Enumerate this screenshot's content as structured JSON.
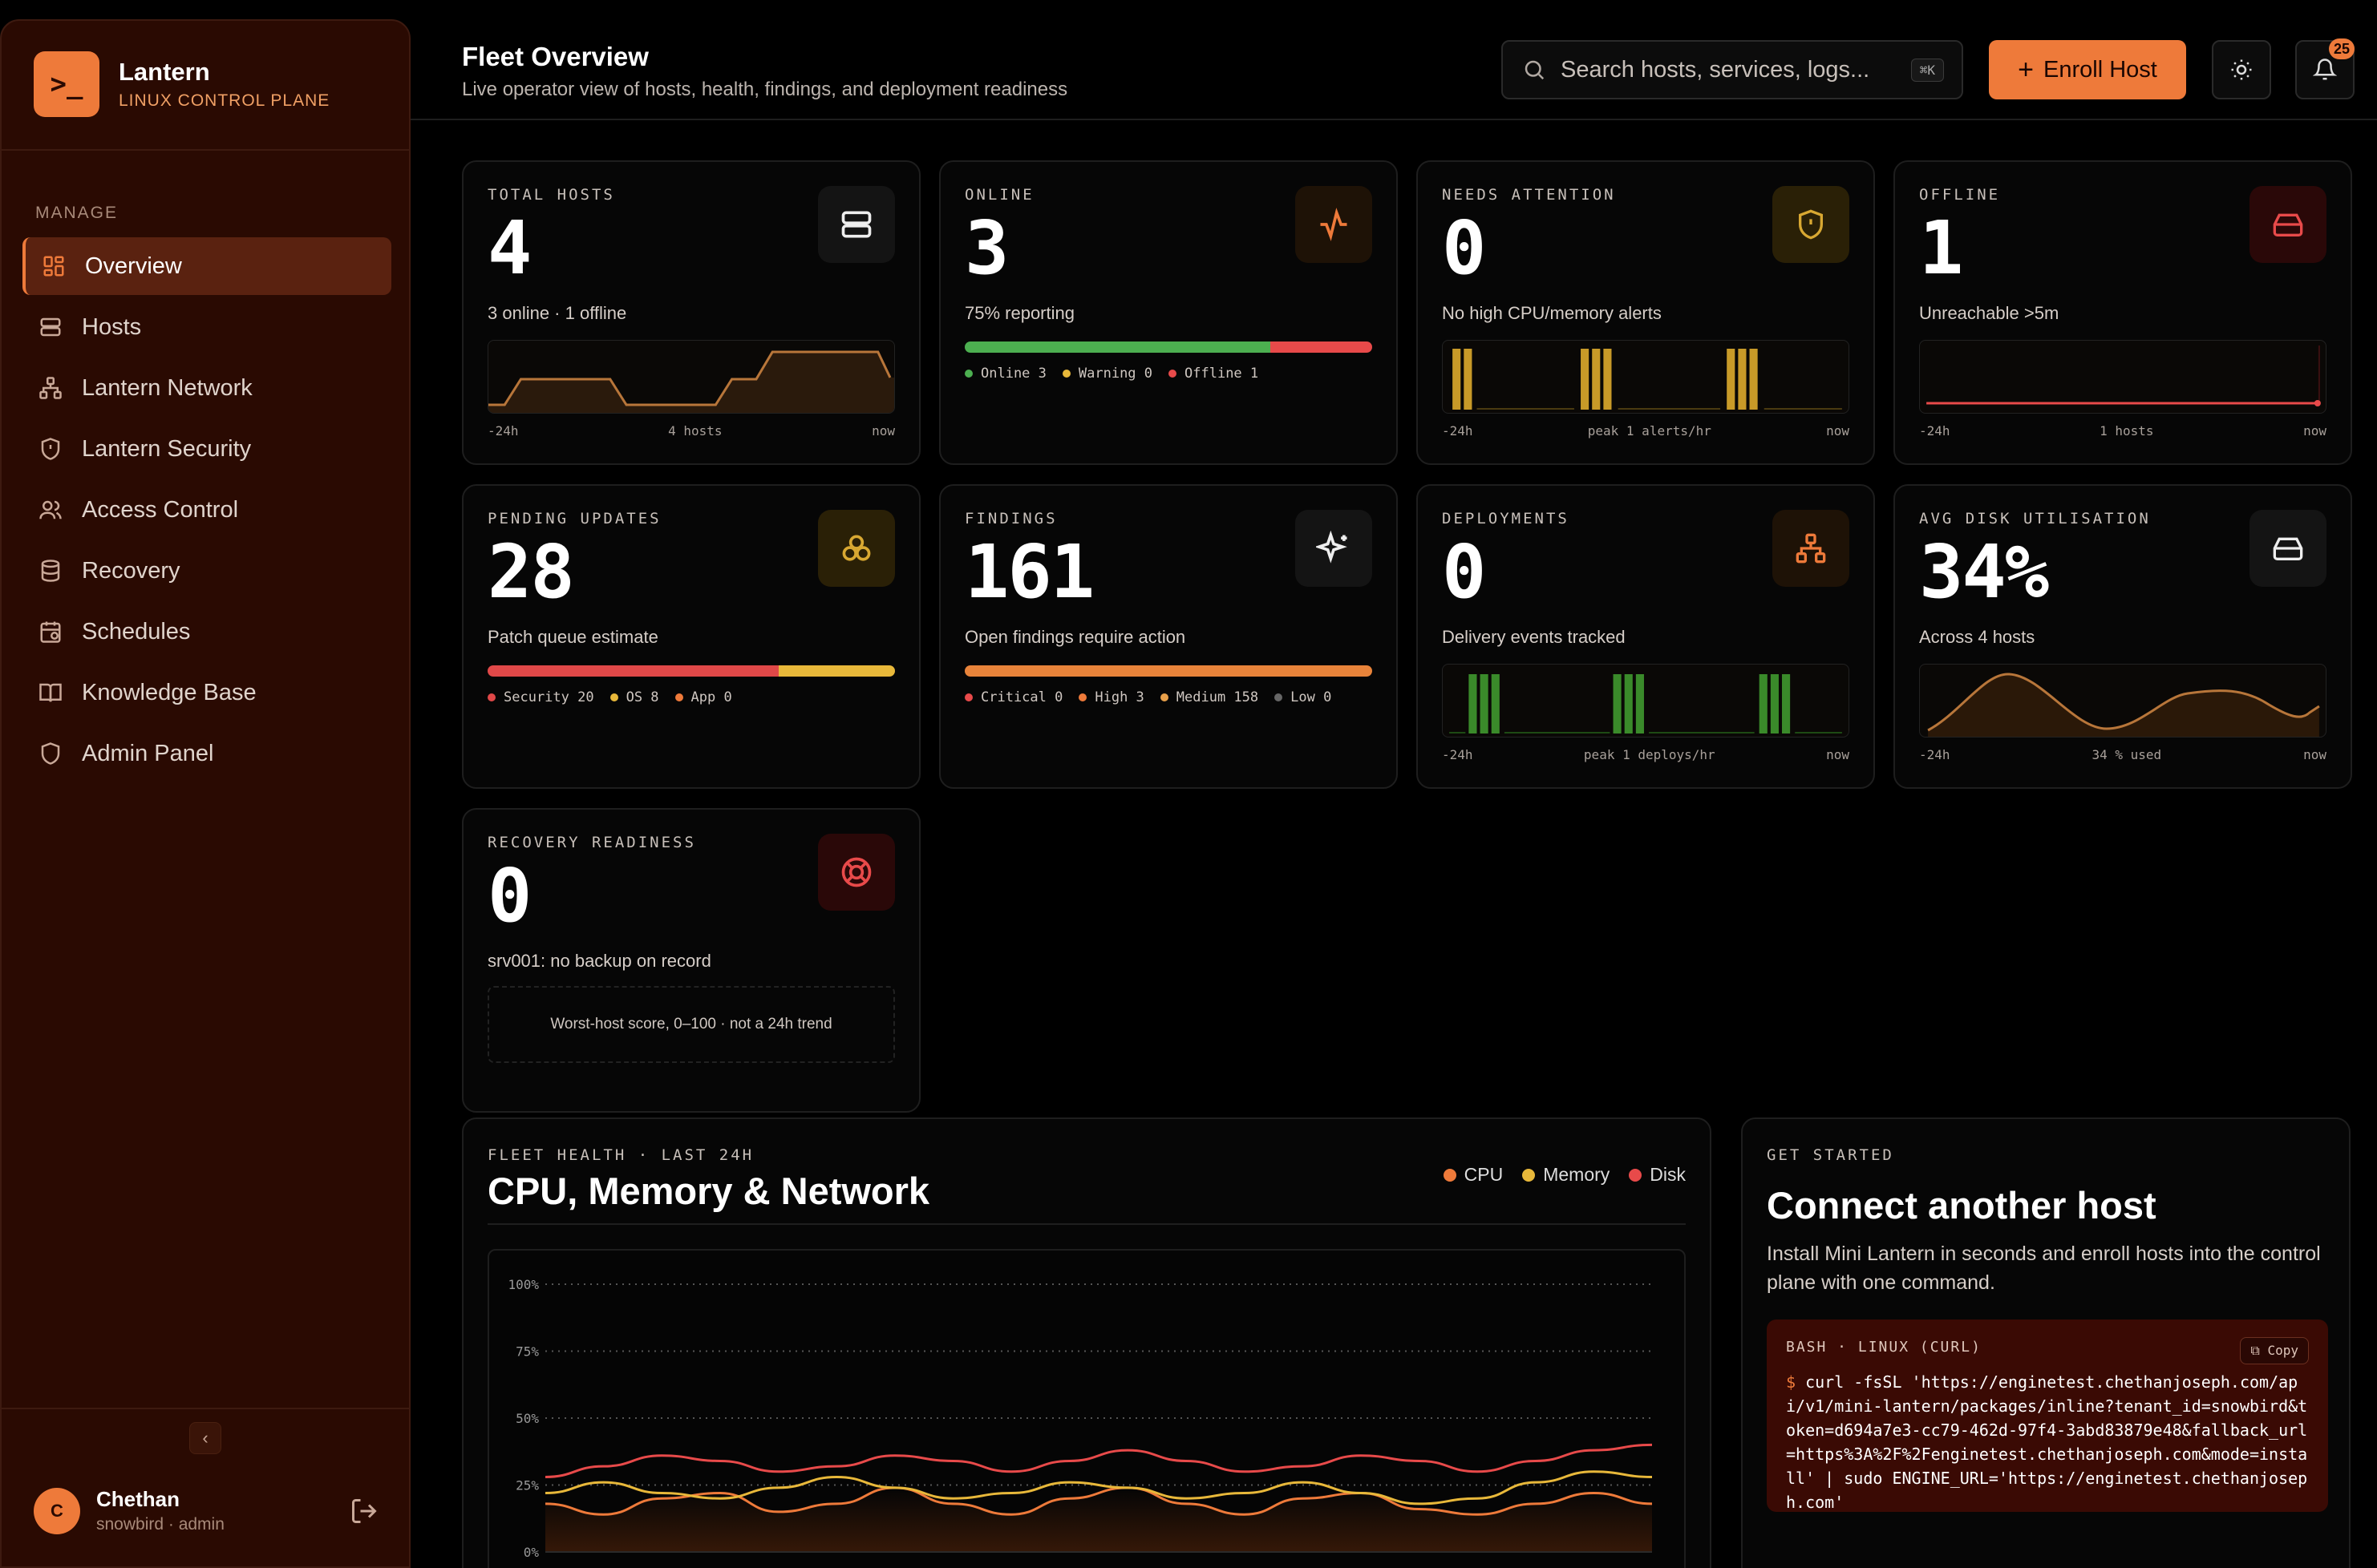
{
  "brand": {
    "name": "Lantern",
    "subtitle": "LINUX CONTROL PLANE",
    "logo_glyph": ">_"
  },
  "sidebar": {
    "section": "MANAGE",
    "items": [
      {
        "label": "Overview",
        "icon": "grid-icon",
        "active": true
      },
      {
        "label": "Hosts",
        "icon": "server-icon"
      },
      {
        "label": "Lantern Network",
        "icon": "network-icon"
      },
      {
        "label": "Lantern Security",
        "icon": "shield-icon"
      },
      {
        "label": "Access Control",
        "icon": "users-icon"
      },
      {
        "label": "Recovery",
        "icon": "database-icon"
      },
      {
        "label": "Schedules",
        "icon": "calendar-icon"
      },
      {
        "label": "Knowledge Base",
        "icon": "book-icon"
      },
      {
        "label": "Admin Panel",
        "icon": "shield-outline-icon"
      }
    ],
    "collapse_glyph": "‹",
    "user": {
      "initial": "C",
      "name": "Chethan",
      "role": "snowbird · admin"
    }
  },
  "header": {
    "title": "Fleet Overview",
    "subtitle": "Live operator view of hosts, health, findings, and deployment readiness",
    "search_placeholder": "Search hosts, services, logs...",
    "search_shortcut": "⌘K",
    "enroll_label": "Enroll Host",
    "notification_count": "25"
  },
  "cards": {
    "total_hosts": {
      "label": "TOTAL HOSTS",
      "value": "4",
      "desc": "3 online · 1 offline",
      "axis": [
        "-24h",
        "4 hosts",
        "now"
      ]
    },
    "online": {
      "label": "ONLINE",
      "value": "3",
      "desc": "75% reporting",
      "bar": {
        "online": 3,
        "warning": 0,
        "offline": 1
      },
      "legend": [
        "Online 3",
        "Warning 0",
        "Offline 1"
      ]
    },
    "needs_attention": {
      "label": "NEEDS ATTENTION",
      "value": "0",
      "desc": "No high CPU/memory alerts",
      "axis": [
        "-24h",
        "peak 1 alerts/hr",
        "now"
      ]
    },
    "offline": {
      "label": "OFFLINE",
      "value": "1",
      "desc": "Unreachable >5m",
      "axis": [
        "-24h",
        "1 hosts",
        "now"
      ]
    },
    "pending_updates": {
      "label": "PENDING UPDATES",
      "value": "28",
      "desc": "Patch queue estimate",
      "bar": {
        "security": 20,
        "os": 8,
        "app": 0
      },
      "legend": [
        "Security 20",
        "OS 8",
        "App 0"
      ]
    },
    "findings": {
      "label": "FINDINGS",
      "value": "161",
      "desc": "Open findings require action",
      "bar": {
        "critical": 0,
        "high": 3,
        "medium": 158,
        "low": 0
      },
      "legend": [
        "Critical 0",
        "High 3",
        "Medium 158",
        "Low 0"
      ]
    },
    "deployments": {
      "label": "DEPLOYMENTS",
      "value": "0",
      "desc": "Delivery events tracked",
      "axis": [
        "-24h",
        "peak 1 deploys/hr",
        "now"
      ]
    },
    "avg_disk": {
      "label": "AVG DISK UTILISATION",
      "value": "34%",
      "desc": "Across 4 hosts",
      "axis": [
        "-24h",
        "34 % used",
        "now"
      ]
    },
    "recovery": {
      "label": "RECOVERY READINESS",
      "value": "0",
      "desc": "srv001: no backup on record",
      "note": "Worst-host score, 0–100 · not a 24h trend"
    }
  },
  "fleet_health": {
    "label": "FLEET HEALTH · LAST 24H",
    "title": "CPU, Memory & Network",
    "legend": [
      {
        "name": "CPU",
        "color": "#ee7a3a"
      },
      {
        "name": "Memory",
        "color": "#e8b83a"
      },
      {
        "name": "Disk",
        "color": "#e84a4a"
      }
    ]
  },
  "chart_data": {
    "type": "line",
    "ylim": [
      0,
      100
    ],
    "yticks": [
      "100%",
      "75%",
      "50%",
      "25%",
      "0%"
    ],
    "grid": true,
    "legend_position": "top-right",
    "series": [
      {
        "name": "CPU",
        "values": [
          18,
          14,
          20,
          22,
          15,
          18,
          24,
          18,
          14,
          20,
          24,
          18,
          14,
          20,
          22,
          16,
          14,
          18,
          22,
          18
        ]
      },
      {
        "name": "Memory",
        "values": [
          22,
          26,
          22,
          20,
          24,
          28,
          24,
          20,
          22,
          26,
          24,
          20,
          22,
          26,
          22,
          18,
          20,
          26,
          30,
          28
        ]
      },
      {
        "name": "Disk",
        "values": [
          28,
          32,
          36,
          34,
          30,
          32,
          36,
          34,
          30,
          34,
          38,
          34,
          30,
          32,
          36,
          34,
          30,
          34,
          38,
          40
        ]
      }
    ]
  },
  "get_started": {
    "label": "GET STARTED",
    "title": "Connect another host",
    "desc": "Install Mini Lantern in seconds and enroll hosts into the control plane with one command.",
    "code_label": "BASH · LINUX (CURL)",
    "copy_label": "Copy",
    "prompt": "$",
    "command": "curl -fsSL 'https://enginetest.chethanjoseph.com/api/v1/mini-lantern/packages/inline?tenant_id=snowbird&token=d694a7e3-cc79-462d-97f4-3abd83879e48&fallback_url=https%3A%2F%2Fenginetest.chethanjoseph.com&mode=install' | sudo ENGINE_URL='https://enginetest.chethanjoseph.com'"
  },
  "colors": {
    "accent": "#ee7a3a",
    "online": "#4caf50",
    "warning": "#e8b83a",
    "offline": "#e84a4a",
    "sidebar_bg": "#2a0a02"
  }
}
